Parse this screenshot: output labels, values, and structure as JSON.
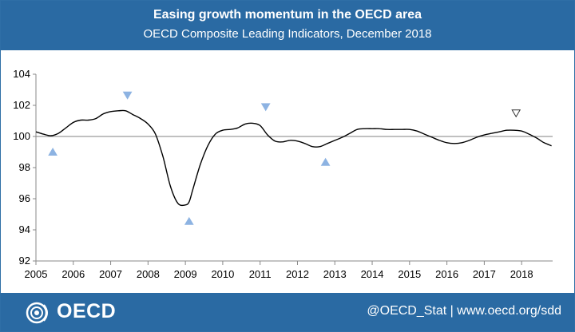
{
  "header": {
    "title": "Easing growth momentum in the OECD area",
    "subtitle": "OECD Composite Leading Indicators, December 2018"
  },
  "footer": {
    "logo_text": "OECD",
    "credit": "@OECD_Stat | www.oecd.org/sdd"
  },
  "colors": {
    "header_bg": "#2a6aa3",
    "line": "#000000",
    "marker_fill": "#8db3e2",
    "reference_line": "#808080"
  },
  "chart_data": {
    "type": "line",
    "title": "Easing growth momentum in the OECD area",
    "subtitle": "OECD Composite Leading Indicators, December 2018",
    "xlabel": "",
    "ylabel": "",
    "xlim": [
      2005,
      2018.83
    ],
    "ylim": [
      92,
      104
    ],
    "y_ticks": [
      92,
      94,
      96,
      98,
      100,
      102,
      104
    ],
    "x_ticks": [
      2005,
      2006,
      2007,
      2008,
      2009,
      2010,
      2011,
      2012,
      2013,
      2014,
      2015,
      2016,
      2017,
      2018
    ],
    "reference_line": 100,
    "grid": false,
    "legend": "none",
    "series": [
      {
        "x": [
          2005.0,
          2005.2,
          2005.4,
          2005.6,
          2005.8,
          2006.0,
          2006.2,
          2006.4,
          2006.6,
          2006.8,
          2007.0,
          2007.2,
          2007.4,
          2007.6,
          2007.8,
          2008.0,
          2008.2,
          2008.4,
          2008.6,
          2008.8,
          2009.0,
          2009.1,
          2009.2,
          2009.4,
          2009.6,
          2009.8,
          2010.0,
          2010.2,
          2010.4,
          2010.6,
          2010.8,
          2011.0,
          2011.2,
          2011.4,
          2011.6,
          2011.8,
          2012.0,
          2012.2,
          2012.4,
          2012.6,
          2012.8,
          2013.0,
          2013.2,
          2013.4,
          2013.6,
          2013.8,
          2014.0,
          2014.2,
          2014.4,
          2014.6,
          2014.8,
          2015.0,
          2015.2,
          2015.4,
          2015.6,
          2015.8,
          2016.0,
          2016.2,
          2016.4,
          2016.6,
          2016.8,
          2017.0,
          2017.2,
          2017.4,
          2017.6,
          2017.8,
          2018.0,
          2018.2,
          2018.4,
          2018.6,
          2018.8
        ],
        "y": [
          100.3,
          100.15,
          100.05,
          100.2,
          100.55,
          100.9,
          101.05,
          101.05,
          101.15,
          101.45,
          101.6,
          101.65,
          101.65,
          101.4,
          101.15,
          100.8,
          100.15,
          98.7,
          96.8,
          95.7,
          95.6,
          95.8,
          96.6,
          98.2,
          99.4,
          100.15,
          100.4,
          100.45,
          100.55,
          100.8,
          100.85,
          100.7,
          100.1,
          99.7,
          99.65,
          99.75,
          99.7,
          99.55,
          99.35,
          99.35,
          99.55,
          99.75,
          99.95,
          100.2,
          100.45,
          100.5,
          100.5,
          100.5,
          100.45,
          100.45,
          100.45,
          100.45,
          100.35,
          100.15,
          99.95,
          99.75,
          99.6,
          99.55,
          99.6,
          99.75,
          99.95,
          100.1,
          100.2,
          100.3,
          100.4,
          100.4,
          100.35,
          100.15,
          99.9,
          99.6,
          99.4
        ]
      }
    ],
    "markers": [
      {
        "x": 2005.45,
        "y": 99.0,
        "shape": "triangle-up",
        "filled": true
      },
      {
        "x": 2007.45,
        "y": 102.65,
        "shape": "triangle-down",
        "filled": true
      },
      {
        "x": 2009.1,
        "y": 94.55,
        "shape": "triangle-up",
        "filled": true
      },
      {
        "x": 2011.15,
        "y": 101.9,
        "shape": "triangle-down",
        "filled": true
      },
      {
        "x": 2012.75,
        "y": 98.35,
        "shape": "triangle-up",
        "filled": true
      },
      {
        "x": 2017.85,
        "y": 101.5,
        "shape": "triangle-down",
        "filled": false
      }
    ]
  }
}
